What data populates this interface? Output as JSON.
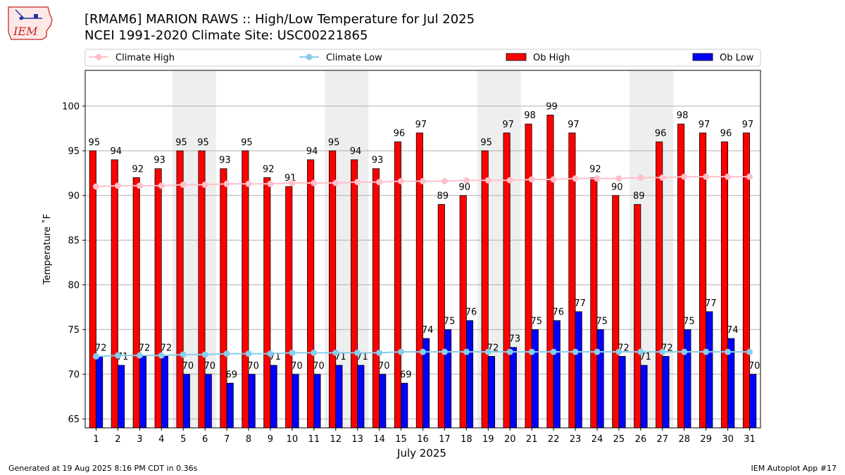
{
  "header": {
    "title_line1": "[RMAM6] MARION RAWS :: High/Low Temperature for Jul 2025",
    "title_line2": "NCEI 1991-2020 Climate Site: USC00221865",
    "logo_text": "IEM"
  },
  "footer": {
    "generated": "Generated at 19 Aug 2025 8:16 PM CDT in 0.36s",
    "app": "IEM Autoplot App #17"
  },
  "chart_data": {
    "type": "bar",
    "xlabel": "July 2025",
    "ylabel": "Temperature ˚F",
    "ylim": [
      64,
      104
    ],
    "yticks": [
      65,
      70,
      75,
      80,
      85,
      90,
      95,
      100
    ],
    "grid": true,
    "legend_position": "top",
    "weekend_shading_days": [
      5,
      6,
      12,
      13,
      19,
      20,
      26,
      27
    ],
    "categories": [
      "1",
      "2",
      "3",
      "4",
      "5",
      "6",
      "7",
      "8",
      "9",
      "10",
      "11",
      "12",
      "13",
      "14",
      "15",
      "16",
      "17",
      "18",
      "19",
      "20",
      "21",
      "22",
      "23",
      "24",
      "25",
      "26",
      "27",
      "28",
      "29",
      "30",
      "31"
    ],
    "series": [
      {
        "name": "Climate High",
        "kind": "line",
        "color": "#ffc0cb",
        "values": [
          91.0,
          91.1,
          91.1,
          91.1,
          91.2,
          91.2,
          91.3,
          91.3,
          91.3,
          91.4,
          91.4,
          91.4,
          91.5,
          91.5,
          91.6,
          91.6,
          91.6,
          91.7,
          91.7,
          91.7,
          91.8,
          91.8,
          91.9,
          91.9,
          91.9,
          92.0,
          92.0,
          92.1,
          92.1,
          92.1,
          92.1
        ]
      },
      {
        "name": "Climate Low",
        "kind": "line",
        "color": "#87ceeb",
        "values": [
          72.0,
          72.1,
          72.1,
          72.1,
          72.2,
          72.2,
          72.3,
          72.3,
          72.3,
          72.4,
          72.4,
          72.4,
          72.4,
          72.4,
          72.5,
          72.5,
          72.5,
          72.5,
          72.5,
          72.5,
          72.5,
          72.5,
          72.5,
          72.5,
          72.5,
          72.5,
          72.5,
          72.5,
          72.5,
          72.5,
          72.5
        ]
      },
      {
        "name": "Ob High",
        "kind": "bar",
        "color": "#ff0000",
        "values": [
          95,
          94,
          92,
          93,
          95,
          95,
          93,
          95,
          92,
          91,
          94,
          95,
          94,
          93,
          96,
          97,
          89,
          90,
          95,
          97,
          98,
          99,
          97,
          92,
          90,
          89,
          96,
          98,
          97,
          96,
          97
        ]
      },
      {
        "name": "Ob Low",
        "kind": "bar",
        "color": "#0000ff",
        "values": [
          72,
          71,
          72,
          72,
          70,
          70,
          69,
          70,
          71,
          70,
          70,
          71,
          71,
          70,
          69,
          74,
          75,
          76,
          72,
          73,
          75,
          76,
          77,
          75,
          72,
          71,
          72,
          75,
          77,
          74,
          70
        ]
      }
    ]
  }
}
